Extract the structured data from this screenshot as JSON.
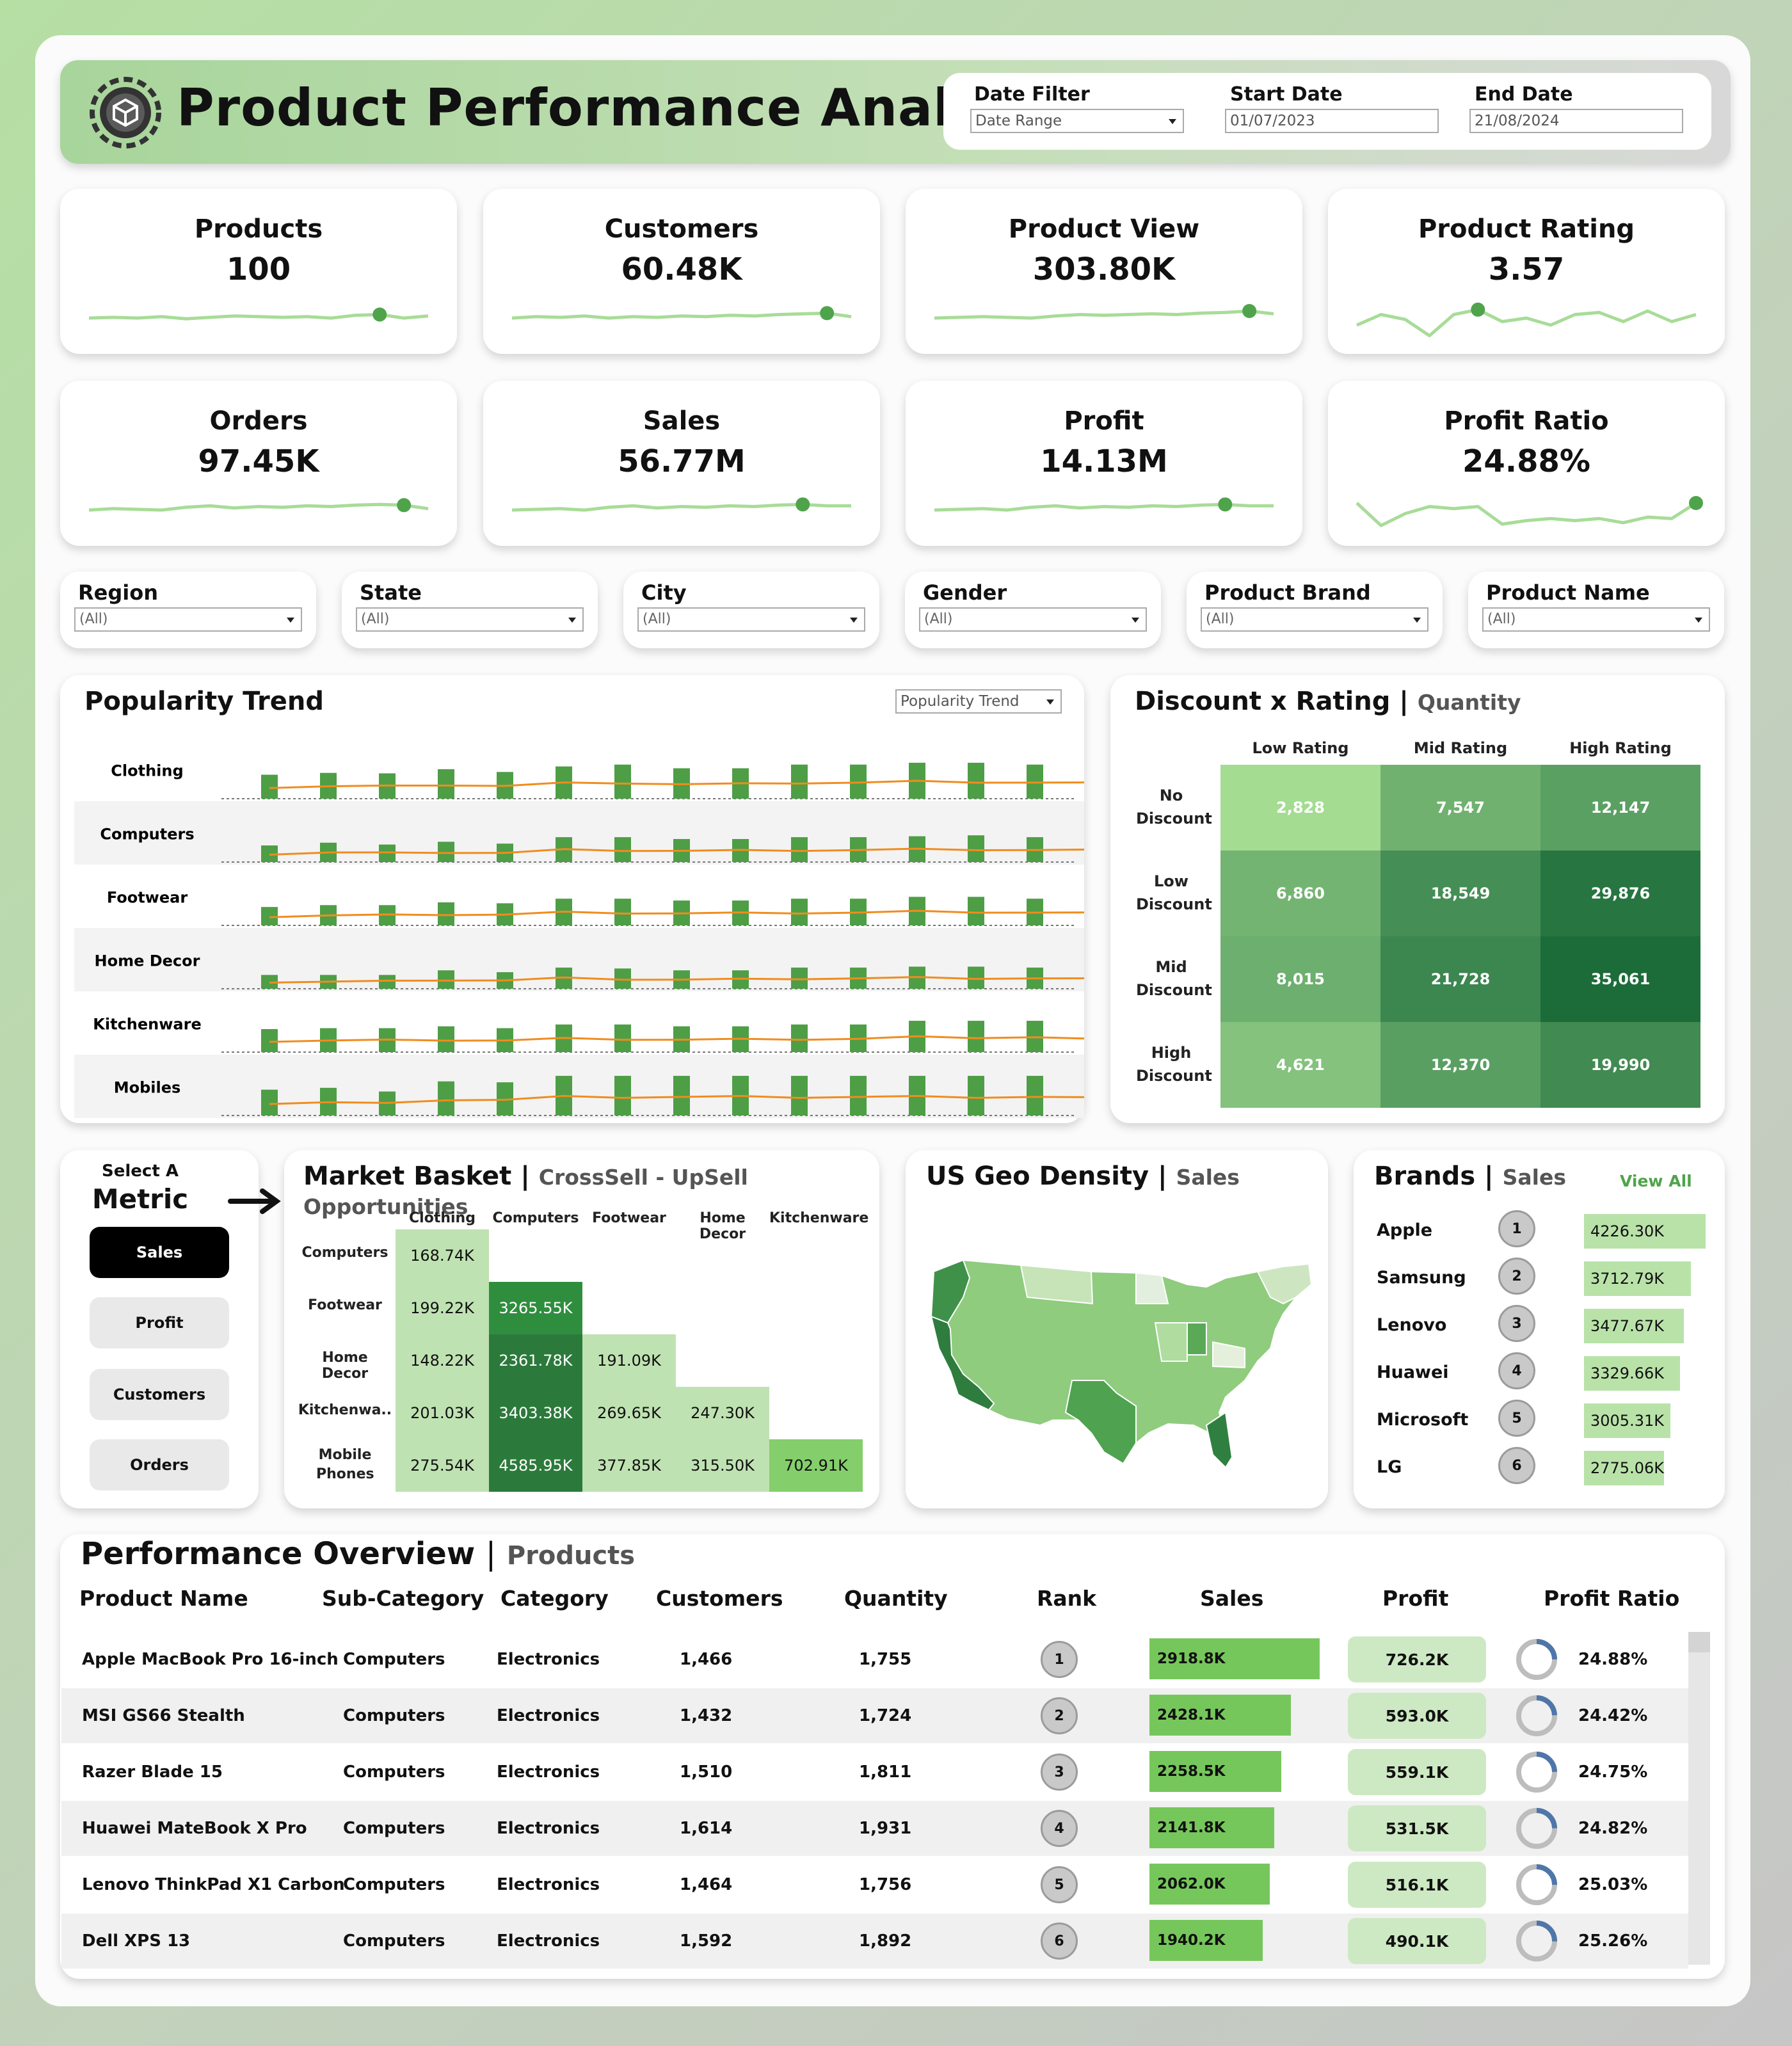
{
  "header": {
    "title": "Product Performance Analysis",
    "date_filter_label": "Date Filter",
    "date_filter_value": "Date Range",
    "start_date_label": "Start Date",
    "start_date_value": "01/07/2023",
    "end_date_label": "End Date",
    "end_date_value": "21/08/2024"
  },
  "kpis": [
    {
      "title": "Products",
      "value": "100",
      "spark": [
        50,
        51,
        50,
        52,
        49,
        51,
        53,
        52,
        51,
        52,
        50,
        54,
        55,
        50,
        53
      ],
      "marker": 12
    },
    {
      "title": "Customers",
      "value": "60.48K",
      "spark": [
        50,
        52,
        51,
        53,
        50,
        52,
        51,
        53,
        52,
        54,
        53,
        55,
        56,
        57,
        52
      ],
      "marker": 13
    },
    {
      "title": "Product View",
      "value": "303.80K",
      "spark": [
        50,
        51,
        52,
        51,
        50,
        53,
        55,
        54,
        55,
        56,
        55,
        57,
        58,
        60,
        56
      ],
      "marker": 13
    },
    {
      "title": "Product Rating",
      "value": "3.57",
      "spark": [
        40,
        55,
        48,
        25,
        55,
        62,
        45,
        50,
        40,
        55,
        58,
        45,
        60,
        45,
        55
      ],
      "marker": 5
    },
    {
      "title": "Orders",
      "value": "97.45K",
      "spark": [
        50,
        52,
        51,
        50,
        54,
        56,
        53,
        55,
        54,
        56,
        55,
        57,
        58,
        57,
        52
      ],
      "marker": 13
    },
    {
      "title": "Sales",
      "value": "56.77M",
      "spark": [
        50,
        51,
        52,
        50,
        54,
        56,
        53,
        55,
        54,
        56,
        55,
        57,
        58,
        56,
        56
      ],
      "marker": 12
    },
    {
      "title": "Profit",
      "value": "14.13M",
      "spark": [
        50,
        51,
        52,
        50,
        54,
        56,
        53,
        55,
        54,
        56,
        55,
        57,
        58,
        56,
        56
      ],
      "marker": 12
    },
    {
      "title": "Profit Ratio",
      "value": "24.88%",
      "spark": [
        60,
        28,
        45,
        55,
        52,
        55,
        30,
        35,
        38,
        35,
        38,
        32,
        40,
        38,
        60
      ],
      "marker": 14
    }
  ],
  "filters": [
    {
      "label": "Region",
      "value": "(All)"
    },
    {
      "label": "State",
      "value": "(All)"
    },
    {
      "label": "City",
      "value": "(All)"
    },
    {
      "label": "Gender",
      "value": "(All)"
    },
    {
      "label": "Product Brand",
      "value": "(All)"
    },
    {
      "label": "Product Name",
      "value": "(All)"
    }
  ],
  "popularity": {
    "title": "Popularity Trend",
    "selector": "Popularity Trend",
    "categories": [
      "Clothing",
      "Computers",
      "Footwear",
      "Home Decor",
      "Kitchenware",
      "Mobiles"
    ],
    "colors": {
      "bar": "#4e9e46",
      "line": "#f08c1e"
    }
  },
  "discount": {
    "title": "Discount x Rating",
    "subtitle": "Quantity",
    "cols": [
      "Low Rating",
      "Mid Rating",
      "High Rating"
    ],
    "rows": [
      "No Discount",
      "Low Discount",
      "Mid Discount",
      "High Discount"
    ],
    "values": [
      [
        "2,828",
        "7,547",
        "12,147"
      ],
      [
        "6,860",
        "18,549",
        "29,876"
      ],
      [
        "8,015",
        "21,728",
        "35,061"
      ],
      [
        "4,621",
        "12,370",
        "19,990"
      ]
    ]
  },
  "metric": {
    "label_small": "Select A",
    "label_big": "Metric",
    "options": [
      "Sales",
      "Profit",
      "Customers",
      "Orders"
    ],
    "selected": "Sales"
  },
  "basket": {
    "title": "Market Basket",
    "subtitle": "CrossSell - UpSell Opportunities",
    "cols": [
      "Clothing",
      "Computers",
      "Footwear",
      "Home Decor",
      "Kitchenware"
    ],
    "rows": [
      "Computers",
      "Footwear",
      "Home Decor",
      "Kitchenwa..",
      "Mobile Phones"
    ],
    "values": [
      [
        "168.74K"
      ],
      [
        "199.22K",
        "3265.55K"
      ],
      [
        "148.22K",
        "2361.78K",
        "191.09K"
      ],
      [
        "201.03K",
        "3403.38K",
        "269.65K",
        "247.30K"
      ],
      [
        "275.54K",
        "4585.95K",
        "377.85K",
        "315.50K",
        "702.91K"
      ]
    ]
  },
  "geo": {
    "title": "US Geo Density",
    "subtitle": "Sales"
  },
  "brands": {
    "title": "Brands",
    "subtitle": "Sales",
    "view_all": "View All",
    "items": [
      {
        "name": "Apple",
        "rank": "1",
        "value": "4226.30K",
        "fraction": 1.0
      },
      {
        "name": "Samsung",
        "rank": "2",
        "value": "3712.79K",
        "fraction": 0.878
      },
      {
        "name": "Lenovo",
        "rank": "3",
        "value": "3477.67K",
        "fraction": 0.823
      },
      {
        "name": "Huawei",
        "rank": "4",
        "value": "3329.66K",
        "fraction": 0.788
      },
      {
        "name": "Microsoft",
        "rank": "5",
        "value": "3005.31K",
        "fraction": 0.711
      },
      {
        "name": "LG",
        "rank": "6",
        "value": "2775.06K",
        "fraction": 0.657
      }
    ]
  },
  "table": {
    "title": "Performance Overview",
    "subtitle": "Products",
    "columns": [
      "Product Name",
      "Sub-Category",
      "Category",
      "Customers",
      "Quantity",
      "Rank",
      "Sales",
      "Profit",
      "Profit Ratio"
    ],
    "rows": [
      {
        "name": "Apple MacBook Pro 16-inch",
        "sub": "Computers",
        "cat": "Electronics",
        "customers": "1,466",
        "quantity": "1,755",
        "rank": "1",
        "sales": "2918.8K",
        "sales_fraction": 1.0,
        "profit": "726.2K",
        "ratio": "24.88%",
        "ratio_value": 0.2488
      },
      {
        "name": "MSI GS66 Stealth",
        "sub": "Computers",
        "cat": "Electronics",
        "customers": "1,432",
        "quantity": "1,724",
        "rank": "2",
        "sales": "2428.1K",
        "sales_fraction": 0.832,
        "profit": "593.0K",
        "ratio": "24.42%",
        "ratio_value": 0.2442
      },
      {
        "name": "Razer Blade 15",
        "sub": "Computers",
        "cat": "Electronics",
        "customers": "1,510",
        "quantity": "1,811",
        "rank": "3",
        "sales": "2258.5K",
        "sales_fraction": 0.774,
        "profit": "559.1K",
        "ratio": "24.75%",
        "ratio_value": 0.2475
      },
      {
        "name": "Huawei MateBook X Pro",
        "sub": "Computers",
        "cat": "Electronics",
        "customers": "1,614",
        "quantity": "1,931",
        "rank": "4",
        "sales": "2141.8K",
        "sales_fraction": 0.734,
        "profit": "531.5K",
        "ratio": "24.82%",
        "ratio_value": 0.2482
      },
      {
        "name": "Lenovo ThinkPad X1 Carbon",
        "sub": "Computers",
        "cat": "Electronics",
        "customers": "1,464",
        "quantity": "1,756",
        "rank": "5",
        "sales": "2062.0K",
        "sales_fraction": 0.706,
        "profit": "516.1K",
        "ratio": "25.03%",
        "ratio_value": 0.2503
      },
      {
        "name": "Dell XPS 13",
        "sub": "Computers",
        "cat": "Electronics",
        "customers": "1,592",
        "quantity": "1,892",
        "rank": "6",
        "sales": "1940.2K",
        "sales_fraction": 0.665,
        "profit": "490.1K",
        "ratio": "25.26%",
        "ratio_value": 0.2526
      }
    ]
  },
  "colors": {
    "accent": "#76c75b",
    "dark_green": "#2c7a3b",
    "marker": "#4fa44b",
    "spark": "#a8dc98"
  }
}
